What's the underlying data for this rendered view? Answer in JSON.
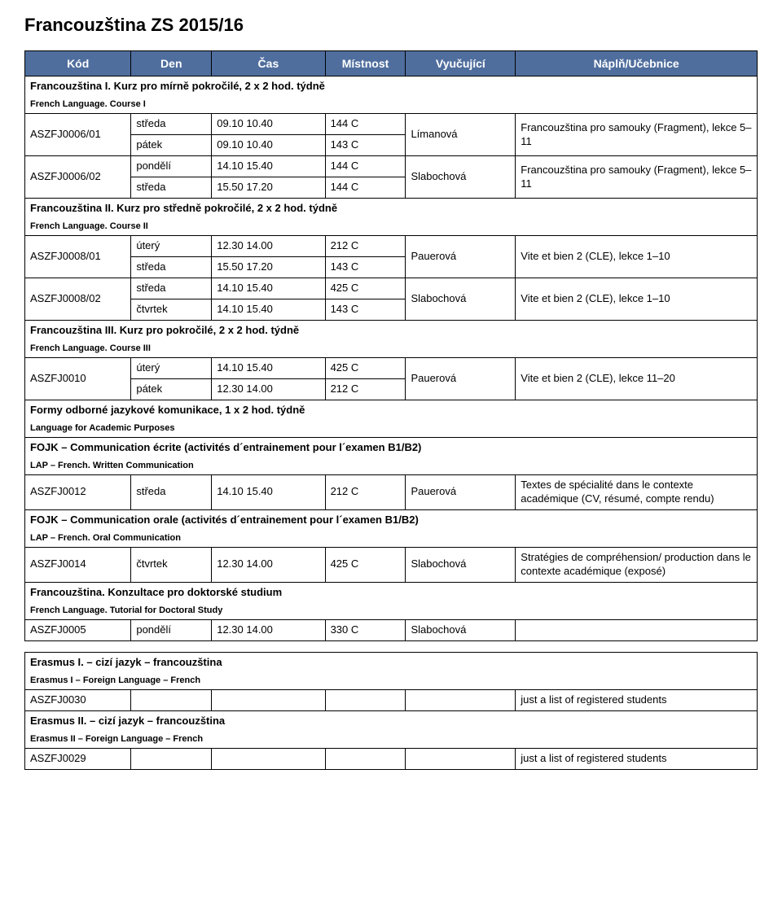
{
  "page_title": "Francouzština ZS 2015/16",
  "header_bg": "#4f6e9e",
  "header_fg": "#ffffff",
  "columns": [
    "Kód",
    "Den",
    "Čas",
    "Místnost",
    "Vyučující",
    "Náplň/Učebnice"
  ],
  "sections": [
    {
      "title": "Francouzština I. Kurz pro mírně pokročilé, 2 x 2 hod. týdně",
      "sub": "French Language. Course I",
      "rows": [
        {
          "code": "ASZFJ0006/01",
          "lines": [
            [
              "středa",
              "09.10 10.40",
              "144 C"
            ],
            [
              "pátek",
              "09.10 10.40",
              "143 C"
            ]
          ],
          "teacher": "Límanová",
          "content": "Francouzština pro samouky (Fragment), lekce 5–11"
        },
        {
          "code": "ASZFJ0006/02",
          "lines": [
            [
              "pondělí",
              "14.10 15.40",
              "144 C"
            ],
            [
              "středa",
              "15.50 17.20",
              "144 C"
            ]
          ],
          "teacher": "Slabochová",
          "content": "Francouzština pro samouky (Fragment), lekce 5–11"
        }
      ]
    },
    {
      "title": "Francouzština II. Kurz pro středně pokročilé, 2 x 2 hod. týdně",
      "sub": "French Language. Course II",
      "rows": [
        {
          "code": "ASZFJ0008/01",
          "lines": [
            [
              "úterý",
              "12.30 14.00",
              "212 C"
            ],
            [
              "středa",
              "15.50 17.20",
              "143 C"
            ]
          ],
          "teacher": "Pauerová",
          "content": "Vite et bien 2 (CLE), lekce 1–10"
        },
        {
          "code": "ASZFJ0008/02",
          "lines": [
            [
              "středa",
              "14.10 15.40",
              "425 C"
            ],
            [
              "čtvrtek",
              "14.10 15.40",
              "143 C"
            ]
          ],
          "teacher": "Slabochová",
          "content": "Vite et bien 2 (CLE), lekce 1–10"
        }
      ]
    },
    {
      "title": "Francouzština III. Kurz pro pokročilé, 2 x 2 hod. týdně",
      "sub": "French Language. Course III",
      "rows": [
        {
          "code": "ASZFJ0010",
          "lines": [
            [
              "úterý",
              "14.10 15.40",
              "425 C"
            ],
            [
              "pátek",
              "12.30 14.00",
              "212 C"
            ]
          ],
          "teacher": "Pauerová",
          "content": "Vite et bien 2 (CLE), lekce 11–20"
        }
      ]
    },
    {
      "title": "Formy odborné jazykové komunikace, 1 x 2 hod. týdně",
      "sub": "Language for Academic Purposes",
      "rows": []
    },
    {
      "title": "FOJK – Communication écrite (activités d´entrainement pour l´examen B1/B2)",
      "sub": "LAP – French. Written Communication",
      "rows": [
        {
          "code": "ASZFJ0012",
          "lines": [
            [
              "středa",
              "14.10 15.40",
              "212 C"
            ]
          ],
          "teacher": "Pauerová",
          "content": "Textes de spécialité dans le contexte académique (CV, résumé, compte rendu)"
        }
      ]
    },
    {
      "title": "FOJK – Communication orale (activités d´entrainement pour l´examen B1/B2)",
      "sub": "LAP – French. Oral Communication",
      "rows": [
        {
          "code": "ASZFJ0014",
          "lines": [
            [
              "čtvrtek",
              "12.30 14.00",
              "425 C"
            ]
          ],
          "teacher": "Slabochová",
          "content": "Stratégies de compréhension/ production dans le contexte académique (exposé)"
        }
      ]
    },
    {
      "title": "Francouzština. Konzultace pro doktorské studium",
      "sub": "French Language. Tutorial for Doctoral Study",
      "rows": [
        {
          "code": "ASZFJ0005",
          "lines": [
            [
              "pondělí",
              "12.30 14.00",
              "330 C"
            ]
          ],
          "teacher": "Slabochová",
          "content": ""
        }
      ],
      "gap_after": true
    },
    {
      "title": "Erasmus I. – cizí jazyk – francouzština",
      "sub": "Erasmus I – Foreign Language – French",
      "rows": [
        {
          "code": "ASZFJ0030",
          "lines": [
            [
              "",
              "",
              ""
            ]
          ],
          "teacher": "",
          "content": "just a list of registered students"
        }
      ]
    },
    {
      "title": "Erasmus II. – cizí jazyk – francouzština",
      "sub": "Erasmus II – Foreign Language – French",
      "rows": [
        {
          "code": "ASZFJ0029",
          "lines": [
            [
              "",
              "",
              ""
            ]
          ],
          "teacher": "",
          "content": "just a list of registered students"
        }
      ]
    }
  ]
}
